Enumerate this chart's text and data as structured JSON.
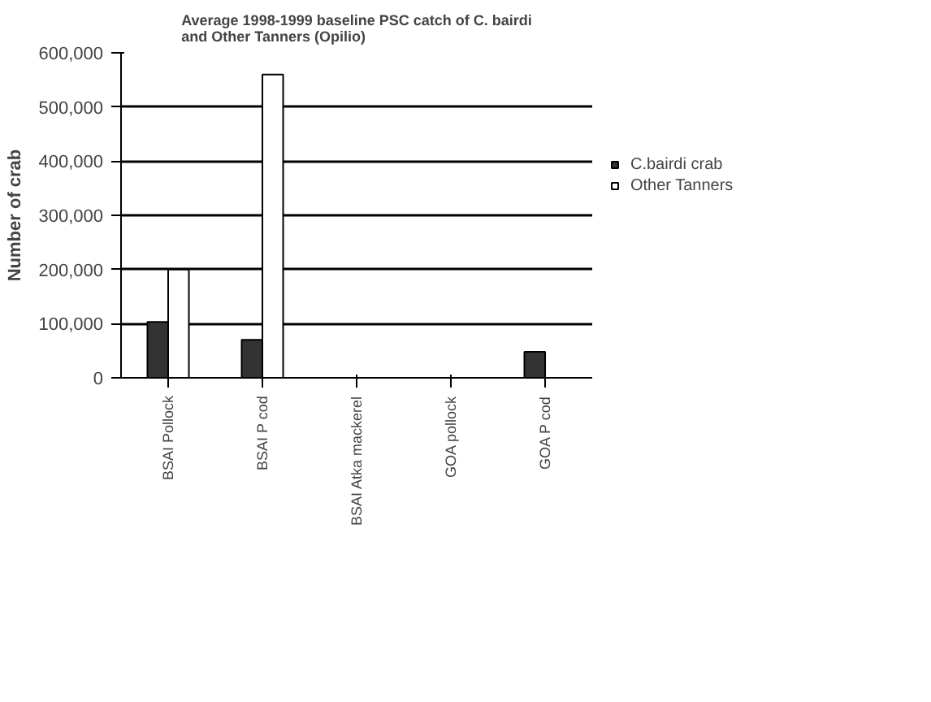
{
  "chart_data": {
    "type": "bar",
    "title": "Average 1998-1999 baseline PSC catch of C. bairdi\nand Other Tanners (Opilio)",
    "ylabel": "Number of crab",
    "categories": [
      "BSAI Pollock",
      "BSAI P cod",
      "BSAI Atka mackerel",
      "GOA pollock",
      "GOA P cod"
    ],
    "series": [
      {
        "name": "C.bairdi crab",
        "color": "#333333",
        "values": [
          103000,
          70000,
          null,
          null,
          48000
        ]
      },
      {
        "name": "Other Tanners",
        "color": "#ffffff",
        "values": [
          200000,
          560000,
          null,
          null,
          null
        ]
      }
    ],
    "ylim": [
      0,
      600000
    ],
    "yticks": [
      {
        "value": 0,
        "label": "0"
      },
      {
        "value": 100000,
        "label": "100,000"
      },
      {
        "value": 200000,
        "label": "200,000"
      },
      {
        "value": 300000,
        "label": "300,000"
      },
      {
        "value": 400000,
        "label": "400,000"
      },
      {
        "value": 500000,
        "label": "500,000"
      },
      {
        "value": 600000,
        "label": "600,000"
      }
    ],
    "grid": "y",
    "legend": "right"
  }
}
